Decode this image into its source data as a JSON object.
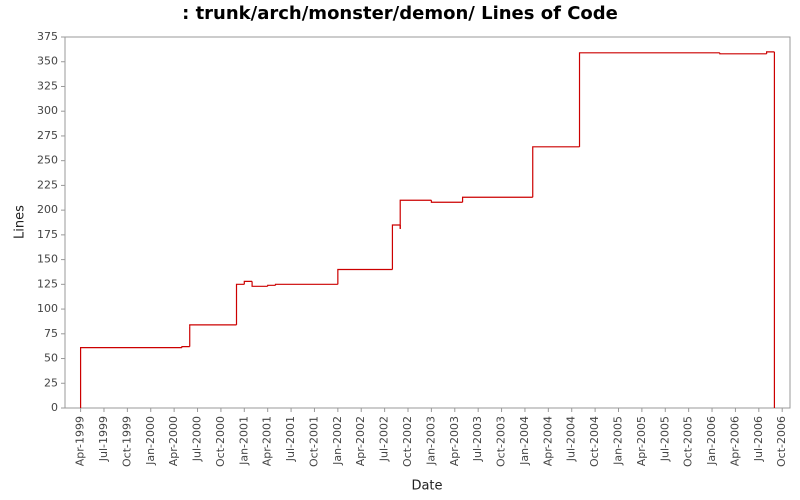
{
  "chart_data": {
    "type": "line",
    "step": "post",
    "title": ": trunk/arch/monster/demon/ Lines of Code",
    "x_label": "Date",
    "y_label": "Lines",
    "color": "#cc0000",
    "series": [
      {
        "name": "Lines",
        "color": "#cc0000",
        "x": [
          "1999-04",
          "1999-04",
          "2000-05",
          "2000-06",
          "2000-06",
          "2000-12",
          "2001-01",
          "2001-02",
          "2001-04",
          "2001-05",
          "2002-01",
          "2002-08",
          "2002-09",
          "2002-09",
          "2003-01",
          "2003-05",
          "2004-02",
          "2004-08",
          "2006-02",
          "2006-08",
          "2006-09"
        ],
        "values": [
          0,
          61,
          62,
          82,
          84,
          125,
          128,
          123,
          124,
          125,
          140,
          185,
          181,
          210,
          208,
          213,
          264,
          359,
          358,
          360,
          0
        ]
      }
    ],
    "xlim": [
      "1999-02",
      "2006-11"
    ],
    "xticks": [
      {
        "value": "1999-04",
        "label": "Apr-1999"
      },
      {
        "value": "1999-07",
        "label": "Jul-1999"
      },
      {
        "value": "1999-10",
        "label": "Oct-1999"
      },
      {
        "value": "2000-01",
        "label": "Jan-2000"
      },
      {
        "value": "2000-04",
        "label": "Apr-2000"
      },
      {
        "value": "2000-07",
        "label": "Jul-2000"
      },
      {
        "value": "2000-10",
        "label": "Oct-2000"
      },
      {
        "value": "2001-01",
        "label": "Jan-2001"
      },
      {
        "value": "2001-04",
        "label": "Apr-2001"
      },
      {
        "value": "2001-07",
        "label": "Jul-2001"
      },
      {
        "value": "2001-10",
        "label": "Oct-2001"
      },
      {
        "value": "2002-01",
        "label": "Jan-2002"
      },
      {
        "value": "2002-04",
        "label": "Apr-2002"
      },
      {
        "value": "2002-07",
        "label": "Jul-2002"
      },
      {
        "value": "2002-10",
        "label": "Oct-2002"
      },
      {
        "value": "2003-01",
        "label": "Jan-2003"
      },
      {
        "value": "2003-04",
        "label": "Apr-2003"
      },
      {
        "value": "2003-07",
        "label": "Jul-2003"
      },
      {
        "value": "2003-10",
        "label": "Oct-2003"
      },
      {
        "value": "2004-01",
        "label": "Jan-2004"
      },
      {
        "value": "2004-04",
        "label": "Apr-2004"
      },
      {
        "value": "2004-07",
        "label": "Jul-2004"
      },
      {
        "value": "2004-10",
        "label": "Oct-2004"
      },
      {
        "value": "2005-01",
        "label": "Jan-2005"
      },
      {
        "value": "2005-04",
        "label": "Apr-2005"
      },
      {
        "value": "2005-07",
        "label": "Jul-2005"
      },
      {
        "value": "2005-10",
        "label": "Oct-2005"
      },
      {
        "value": "2006-01",
        "label": "Jan-2006"
      },
      {
        "value": "2006-04",
        "label": "Apr-2006"
      },
      {
        "value": "2006-07",
        "label": "Jul-2006"
      },
      {
        "value": "2006-10",
        "label": "Oct-2006"
      }
    ],
    "ylim": [
      0,
      375
    ],
    "yticks": [
      0,
      25,
      50,
      75,
      100,
      125,
      150,
      175,
      200,
      225,
      250,
      275,
      300,
      325,
      350,
      375
    ],
    "grid": false
  }
}
